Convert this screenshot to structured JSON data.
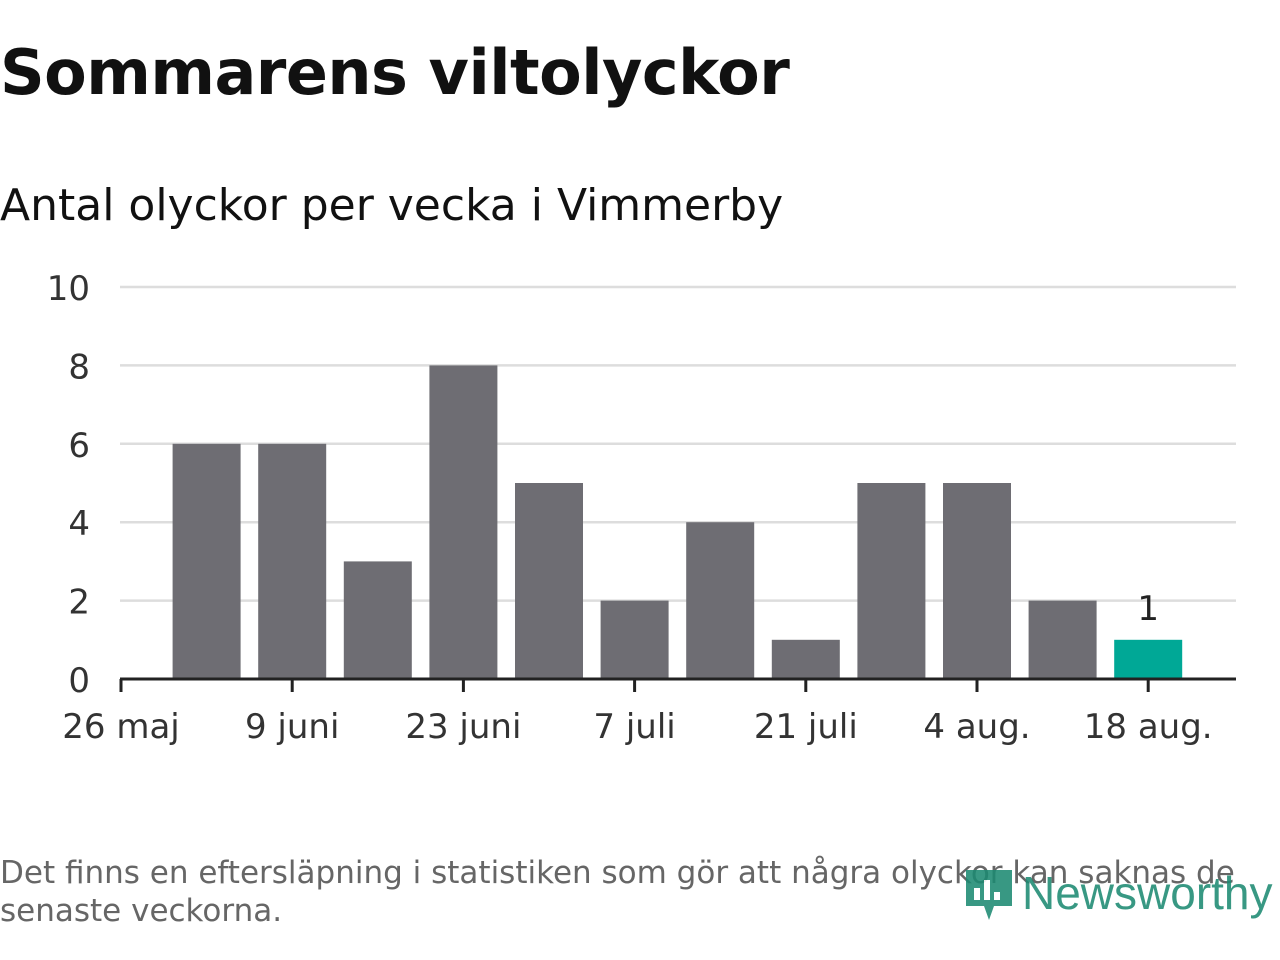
{
  "header": {
    "title": "Sommarens viltolyckor",
    "subtitle": "Antal olyckor per vecka i Vimmerby"
  },
  "chart_data": {
    "type": "bar",
    "categories": [
      "2 juni",
      "9 juni",
      "16 juni",
      "23 juni",
      "30 juni",
      "7 juli",
      "14 juli",
      "21 juli",
      "28 juli",
      "4 aug.",
      "11 aug.",
      "18 aug."
    ],
    "values": [
      6,
      6,
      3,
      8,
      5,
      2,
      4,
      1,
      5,
      5,
      2,
      1
    ],
    "x_tick_labels": [
      "26 maj",
      "9 juni",
      "23 juni",
      "7 juli",
      "21 juli",
      "4 aug.",
      "18 aug."
    ],
    "y_ticks": [
      0,
      2,
      4,
      6,
      8,
      10
    ],
    "ylim": [
      0,
      10
    ],
    "highlight_index": 11,
    "highlight_label": "1",
    "grid": true,
    "colors": {
      "bar": "#6e6d73",
      "highlight": "#00a896",
      "grid": "#dddddd",
      "axis": "#222222"
    }
  },
  "footnote": "Det finns en eftersläpning i statistiken som gör att några olyckor kan saknas de senaste veckorna.",
  "logo": {
    "text": "Newsworthy",
    "icon": "newsworthy-logo-icon"
  }
}
